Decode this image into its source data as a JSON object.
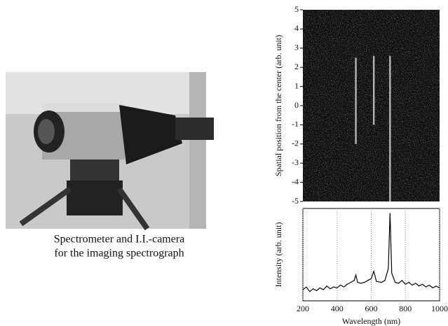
{
  "caption": [
    "Spectrometer and I.I.-camera",
    "for the imaging spectrograph"
  ],
  "chart_data": [
    {
      "type": "image",
      "ylabel": "Spatial position from the center (arb. unit)",
      "xlim": [
        200,
        1000
      ],
      "ylim": [
        -5,
        5
      ],
      "yticks": [
        -5,
        -4,
        -3,
        -2,
        -1,
        0,
        1,
        2,
        3,
        4,
        5
      ],
      "lines": [
        {
          "x": 510,
          "ylim": [
            -2,
            2.5
          ]
        },
        {
          "x": 615,
          "ylim": [
            -1,
            2.6
          ]
        },
        {
          "x": 710,
          "ylim": [
            -5,
            2.6
          ]
        }
      ]
    },
    {
      "type": "line",
      "xlabel": "Wavelength (nm)",
      "ylabel": "Intensity (arb. unit)",
      "xlim": [
        200,
        1000
      ],
      "ylim": [
        0,
        1
      ],
      "xticks": [
        200,
        400,
        600,
        800,
        1000
      ],
      "grid": true,
      "color": "#000000",
      "x": [
        200,
        220,
        240,
        260,
        280,
        300,
        320,
        340,
        360,
        380,
        400,
        420,
        440,
        460,
        480,
        500,
        510,
        520,
        540,
        560,
        580,
        600,
        615,
        630,
        660,
        680,
        700,
        710,
        720,
        740,
        760,
        780,
        800,
        820,
        840,
        860,
        880,
        900,
        920,
        940,
        960,
        980,
        1000
      ],
      "values": [
        0.12,
        0.15,
        0.1,
        0.13,
        0.11,
        0.14,
        0.12,
        0.16,
        0.13,
        0.15,
        0.14,
        0.17,
        0.15,
        0.18,
        0.2,
        0.22,
        0.28,
        0.2,
        0.19,
        0.2,
        0.22,
        0.24,
        0.32,
        0.21,
        0.2,
        0.22,
        0.35,
        0.95,
        0.3,
        0.2,
        0.19,
        0.22,
        0.18,
        0.2,
        0.17,
        0.19,
        0.16,
        0.18,
        0.15,
        0.17,
        0.14,
        0.16,
        0.14
      ]
    }
  ]
}
